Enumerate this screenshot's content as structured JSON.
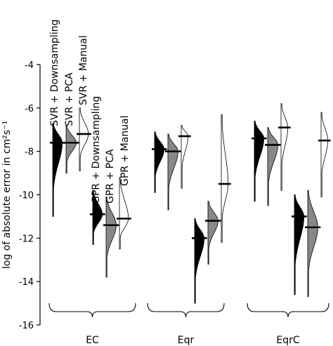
{
  "chart_data": {
    "type": "violin",
    "ylabel": "log of absolute error in cm²s⁻¹",
    "ylim": [
      -16,
      -4
    ],
    "yticks": [
      -4,
      -6,
      -8,
      -10,
      -12,
      -14,
      -16
    ],
    "groups": [
      "EC",
      "Eqr",
      "EqrC"
    ],
    "method_labels": [
      "SVR + Downsampling",
      "SVR + PCA",
      "SVR + Manual",
      "GPR + Downsampling",
      "GPR + PCA",
      "GPR + Manual"
    ],
    "series": [
      {
        "name": "SVR + Downsampling",
        "fill": "#000000",
        "medians": [
          -7.6,
          -7.9,
          -7.4
        ],
        "mins": [
          -11.0,
          -9.9,
          -10.3
        ],
        "maxs": [
          -6.7,
          -7.1,
          -6.6
        ],
        "widths": [
          0.85,
          0.85,
          0.85
        ]
      },
      {
        "name": "SVR + PCA",
        "fill": "#888888",
        "medians": [
          -7.6,
          -8.0,
          -7.7
        ],
        "mins": [
          -9.0,
          -10.7,
          -10.5
        ],
        "maxs": [
          -6.8,
          -7.2,
          -6.9
        ],
        "widths": [
          0.9,
          0.9,
          0.9
        ]
      },
      {
        "name": "SVR + Manual",
        "fill": "#ffffff",
        "medians": [
          -7.2,
          -7.3,
          -6.9
        ],
        "mins": [
          -8.9,
          -9.7,
          -9.8
        ],
        "maxs": [
          -6.0,
          -6.8,
          -5.8
        ],
        "widths": [
          0.8,
          0.6,
          0.6
        ]
      },
      {
        "name": "GPR + Downsampling",
        "fill": "#000000",
        "medians": [
          -10.9,
          -12.0,
          -11.0
        ],
        "mins": [
          -12.3,
          -15.0,
          -14.6
        ],
        "maxs": [
          -9.8,
          -11.1,
          -10.0
        ],
        "widths": [
          0.85,
          0.85,
          0.85
        ]
      },
      {
        "name": "GPR + PCA",
        "fill": "#888888",
        "medians": [
          -11.4,
          -11.2,
          -11.5
        ],
        "mins": [
          -13.8,
          -13.2,
          -14.7
        ],
        "maxs": [
          -10.1,
          -10.3,
          -9.8
        ],
        "widths": [
          0.9,
          0.9,
          0.9
        ]
      },
      {
        "name": "GPR + Manual",
        "fill": "#ffffff",
        "medians": [
          -11.1,
          -9.5,
          -7.5
        ],
        "mins": [
          -12.5,
          -12.2,
          -10.1
        ],
        "maxs": [
          -9.2,
          -6.3,
          -6.2
        ],
        "widths": [
          0.8,
          0.6,
          0.6
        ]
      }
    ]
  }
}
